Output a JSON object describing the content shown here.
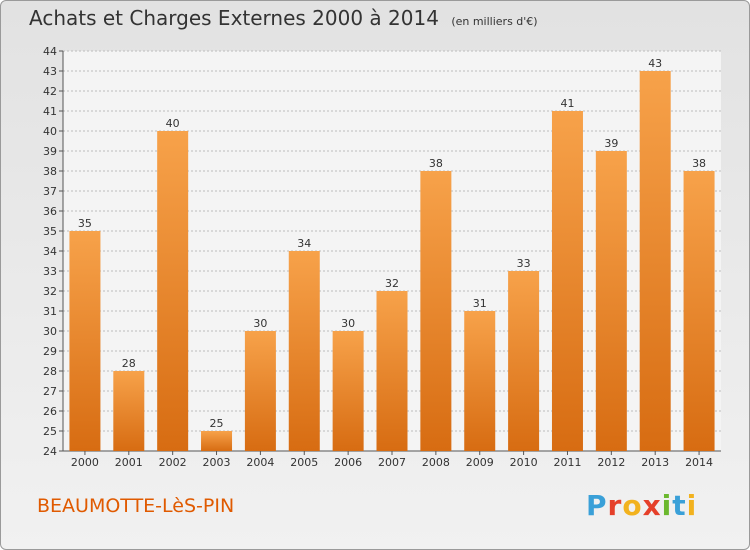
{
  "header": {
    "title": "Achats et Charges Externes 2000 à 2014",
    "subtitle": "(en milliers d'€)"
  },
  "footer": {
    "place": "BEAUMOTTE-LèS-PIN",
    "brand_letters": [
      "P",
      "r",
      "o",
      "x",
      "i",
      "t",
      "i"
    ],
    "brand_colors": [
      "#3aa0d8",
      "#e5402a",
      "#f2b21e",
      "#e5402a",
      "#6bb82e",
      "#3aa0d8",
      "#f2b21e"
    ]
  },
  "colors": {
    "bar_light": "#f7a24a",
    "bar_dark": "#d76c12",
    "grid": "#bdbdbd",
    "axis": "#555555"
  },
  "chart_data": {
    "type": "bar",
    "title": "Achats et Charges Externes 2000 à 2014",
    "subtitle": "(en milliers d'€)",
    "categories": [
      "2000",
      "2001",
      "2002",
      "2003",
      "2004",
      "2005",
      "2006",
      "2007",
      "2008",
      "2009",
      "2010",
      "2011",
      "2012",
      "2013",
      "2014"
    ],
    "values": [
      35,
      28,
      40,
      25,
      30,
      34,
      30,
      32,
      38,
      31,
      33,
      41,
      39,
      43,
      38
    ],
    "ylim": [
      24,
      44
    ],
    "yticks": [
      24,
      25,
      26,
      27,
      28,
      29,
      30,
      31,
      32,
      33,
      34,
      35,
      36,
      37,
      38,
      39,
      40,
      41,
      42,
      43,
      44
    ],
    "grid": true,
    "legend": "none"
  }
}
